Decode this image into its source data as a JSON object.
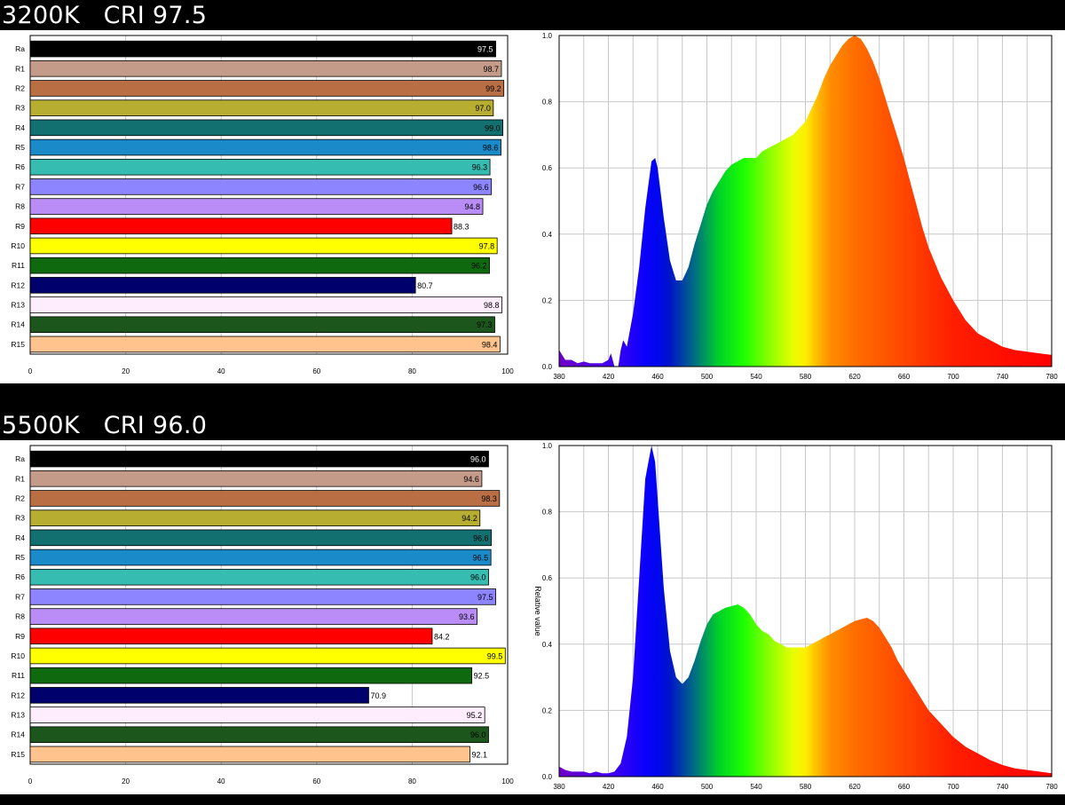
{
  "charts": [
    {
      "title": "3200K   CRI 97.5",
      "chart_data": [
        {
          "type": "bar",
          "orientation": "horizontal",
          "categories": [
            "Ra",
            "R1",
            "R2",
            "R3",
            "R4",
            "R5",
            "R6",
            "R7",
            "R8",
            "R9",
            "R10",
            "R11",
            "R12",
            "R13",
            "R14",
            "R15"
          ],
          "values": [
            97.5,
            98.7,
            99.2,
            97.0,
            99.0,
            98.6,
            96.3,
            96.6,
            94.8,
            88.3,
            97.8,
            96.2,
            80.7,
            98.8,
            97.3,
            98.4
          ],
          "labels": [
            "97.5",
            "98.7",
            "99.2",
            "97.0",
            "99.0",
            "98.6",
            "96.3",
            "96.6",
            "94.8",
            "88.3",
            "97.8",
            "96.2",
            "80.7",
            "98.8",
            "97.3",
            "98.4"
          ],
          "colors": [
            "#000000",
            "#c49a88",
            "#b96e44",
            "#b6ad31",
            "#137071",
            "#1b8ac9",
            "#36bcb0",
            "#8d85ff",
            "#b98cf6",
            "#ff0000",
            "#ffff00",
            "#0f6a0f",
            "#00006c",
            "#fdedfd",
            "#1c561c",
            "#ffc38e"
          ],
          "xlim": [
            0,
            100
          ],
          "xticks": [
            "0",
            "20",
            "40",
            "60",
            "80",
            "100"
          ]
        },
        {
          "type": "area",
          "xlim": [
            380,
            780
          ],
          "ylim": [
            0,
            1
          ],
          "xticks": [
            "380",
            "420",
            "460",
            "500",
            "540",
            "580",
            "620",
            "660",
            "700",
            "740",
            "780"
          ],
          "yticks": [
            "0.0",
            "0.2",
            "0.4",
            "0.6",
            "0.8",
            "1.0"
          ],
          "ylabel": "",
          "x": [
            380,
            385,
            390,
            395,
            400,
            405,
            410,
            415,
            420,
            422,
            425,
            428,
            430,
            432,
            435,
            440,
            445,
            450,
            455,
            458,
            460,
            465,
            470,
            475,
            480,
            485,
            490,
            495,
            500,
            505,
            510,
            515,
            520,
            525,
            530,
            535,
            540,
            545,
            550,
            555,
            560,
            565,
            570,
            575,
            580,
            585,
            590,
            595,
            600,
            605,
            610,
            615,
            620,
            625,
            630,
            635,
            640,
            645,
            650,
            655,
            660,
            665,
            670,
            675,
            680,
            690,
            700,
            710,
            720,
            730,
            740,
            750,
            760,
            770,
            780
          ],
          "y": [
            0.05,
            0.02,
            0.02,
            0.01,
            0.015,
            0.01,
            0.01,
            0.01,
            0.02,
            0.04,
            0.0,
            0.0,
            0.05,
            0.08,
            0.06,
            0.16,
            0.3,
            0.48,
            0.62,
            0.63,
            0.6,
            0.45,
            0.32,
            0.26,
            0.26,
            0.3,
            0.37,
            0.43,
            0.49,
            0.53,
            0.56,
            0.59,
            0.61,
            0.62,
            0.63,
            0.63,
            0.63,
            0.65,
            0.66,
            0.67,
            0.68,
            0.69,
            0.7,
            0.72,
            0.74,
            0.78,
            0.82,
            0.87,
            0.91,
            0.94,
            0.97,
            0.99,
            1.0,
            0.99,
            0.96,
            0.92,
            0.87,
            0.81,
            0.75,
            0.69,
            0.63,
            0.56,
            0.49,
            0.42,
            0.36,
            0.27,
            0.2,
            0.14,
            0.1,
            0.08,
            0.06,
            0.05,
            0.045,
            0.04,
            0.035
          ]
        }
      ]
    },
    {
      "title": "5500K   CRI 96.0",
      "chart_data": [
        {
          "type": "bar",
          "orientation": "horizontal",
          "categories": [
            "Ra",
            "R1",
            "R2",
            "R3",
            "R4",
            "R5",
            "R6",
            "R7",
            "R8",
            "R9",
            "R10",
            "R11",
            "R12",
            "R13",
            "R14",
            "R15"
          ],
          "values": [
            96.0,
            94.6,
            98.3,
            94.2,
            96.6,
            96.5,
            96.0,
            97.5,
            93.6,
            84.2,
            99.5,
            92.5,
            70.9,
            95.2,
            96.0,
            92.1
          ],
          "labels": [
            "96.0",
            "94.6",
            "98.3",
            "94.2",
            "96.6",
            "96.5",
            "96.0",
            "97.5",
            "93.6",
            "84.2",
            "99.5",
            "92.5",
            "70.9",
            "95.2",
            "96.0",
            "92.1"
          ],
          "colors": [
            "#000000",
            "#c49a88",
            "#b96e44",
            "#b6ad31",
            "#137071",
            "#1b8ac9",
            "#36bcb0",
            "#8d85ff",
            "#b98cf6",
            "#ff0000",
            "#ffff00",
            "#0f6a0f",
            "#00006c",
            "#fdedfd",
            "#1c561c",
            "#ffc38e"
          ],
          "xlim": [
            0,
            100
          ],
          "xticks": [
            "0",
            "20",
            "40",
            "60",
            "80",
            "100"
          ]
        },
        {
          "type": "area",
          "xlim": [
            380,
            780
          ],
          "ylim": [
            0,
            1
          ],
          "xticks": [
            "380",
            "420",
            "460",
            "500",
            "540",
            "580",
            "620",
            "660",
            "700",
            "740",
            "780"
          ],
          "yticks": [
            "0.0",
            "0.2",
            "0.4",
            "0.6",
            "0.8",
            "1.0"
          ],
          "ylabel": "Relative value",
          "x": [
            380,
            385,
            390,
            395,
            400,
            405,
            410,
            415,
            420,
            425,
            430,
            435,
            440,
            445,
            450,
            455,
            458,
            460,
            465,
            470,
            475,
            480,
            485,
            490,
            495,
            500,
            505,
            510,
            515,
            520,
            525,
            530,
            535,
            540,
            545,
            550,
            555,
            560,
            565,
            570,
            575,
            580,
            585,
            590,
            595,
            600,
            605,
            610,
            615,
            620,
            625,
            630,
            635,
            640,
            645,
            650,
            655,
            660,
            665,
            670,
            675,
            680,
            690,
            700,
            710,
            720,
            730,
            740,
            750,
            760,
            770,
            780
          ],
          "y": [
            0.03,
            0.02,
            0.015,
            0.015,
            0.015,
            0.01,
            0.015,
            0.01,
            0.01,
            0.015,
            0.04,
            0.12,
            0.3,
            0.6,
            0.9,
            1.0,
            0.95,
            0.84,
            0.57,
            0.38,
            0.3,
            0.28,
            0.3,
            0.35,
            0.41,
            0.46,
            0.49,
            0.5,
            0.51,
            0.515,
            0.52,
            0.51,
            0.49,
            0.46,
            0.44,
            0.43,
            0.41,
            0.4,
            0.39,
            0.39,
            0.39,
            0.39,
            0.4,
            0.41,
            0.42,
            0.43,
            0.44,
            0.45,
            0.46,
            0.47,
            0.475,
            0.48,
            0.47,
            0.45,
            0.42,
            0.39,
            0.35,
            0.32,
            0.29,
            0.26,
            0.23,
            0.2,
            0.16,
            0.12,
            0.09,
            0.07,
            0.05,
            0.035,
            0.025,
            0.02,
            0.015,
            0.01
          ]
        }
      ]
    }
  ]
}
